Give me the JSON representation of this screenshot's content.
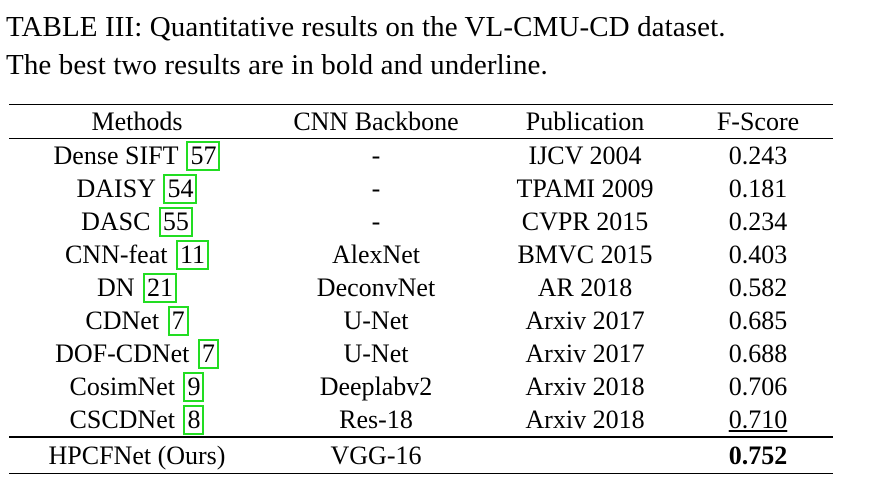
{
  "caption": {
    "line1": "TABLE III: Quantitative results on the VL-CMU-CD dataset.",
    "line2": "The best two results are in bold and underline."
  },
  "table": {
    "headers": [
      "Methods",
      "CNN Backbone",
      "Publication",
      "F-Score"
    ],
    "rows": [
      {
        "method": "Dense SIFT",
        "ref": "57",
        "backbone": "-",
        "publication": "IJCV 2004",
        "fscore": "0.243"
      },
      {
        "method": "DAISY",
        "ref": "54",
        "backbone": "-",
        "publication": "TPAMI 2009",
        "fscore": "0.181"
      },
      {
        "method": "DASC",
        "ref": "55",
        "backbone": "-",
        "publication": "CVPR 2015",
        "fscore": "0.234"
      },
      {
        "method": "CNN-feat",
        "ref": "11",
        "backbone": "AlexNet",
        "publication": "BMVC 2015",
        "fscore": "0.403"
      },
      {
        "method": "DN",
        "ref": "21",
        "backbone": "DeconvNet",
        "publication": "AR 2018",
        "fscore": "0.582"
      },
      {
        "method": "CDNet",
        "ref": "7",
        "backbone": "U-Net",
        "publication": "Arxiv 2017",
        "fscore": "0.685"
      },
      {
        "method": "DOF-CDNet",
        "ref": "7",
        "backbone": "U-Net",
        "publication": "Arxiv 2017",
        "fscore": "0.688"
      },
      {
        "method": "CosimNet",
        "ref": "9",
        "backbone": "Deeplabv2",
        "publication": "Arxiv 2018",
        "fscore": "0.706"
      },
      {
        "method": "CSCDNet",
        "ref": "8",
        "backbone": "Res-18",
        "publication": "Arxiv 2018",
        "fscore": "0.710"
      },
      {
        "method": "HPCFNet (Ours)",
        "ref": "",
        "backbone": "VGG-16",
        "publication": "",
        "fscore": "0.752"
      }
    ]
  },
  "colors": {
    "reference_box": "#22dd22",
    "text": "#000000"
  }
}
